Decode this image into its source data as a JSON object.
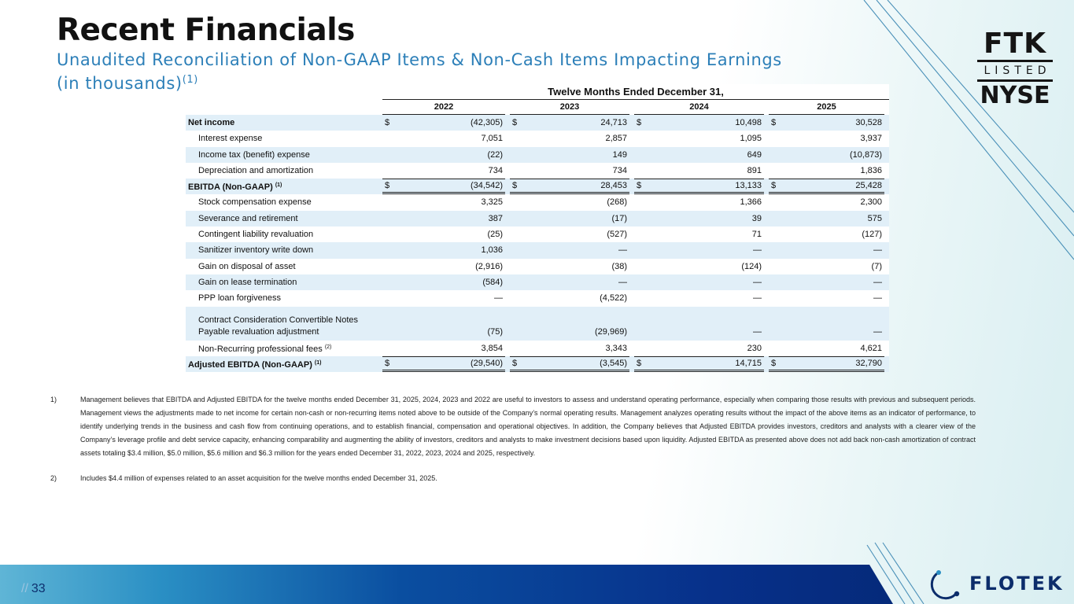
{
  "header": {
    "title": "Recent Financials",
    "subtitle_line1": "Unaudited Reconciliation of Non-GAAP Items & Non-Cash Items Impacting Earnings",
    "subtitle_line2": "(in thousands)",
    "subtitle_sup": "(1)"
  },
  "badge": {
    "ticker": "FTK",
    "listed": "LISTED",
    "exchange": "NYSE"
  },
  "table": {
    "period_header": "Twelve Months Ended December 31,",
    "years": [
      "2022",
      "2023",
      "2024",
      "2025"
    ],
    "rows": [
      {
        "label": "Net income",
        "style": "bold",
        "shade": true,
        "currency": true,
        "values": [
          "(42,305)",
          "24,713",
          "10,498",
          "30,528"
        ]
      },
      {
        "label": "Interest expense",
        "indent": true,
        "shade": false,
        "values": [
          "7,051",
          "2,857",
          "1,095",
          "3,937"
        ]
      },
      {
        "label": "Income tax (benefit) expense",
        "indent": true,
        "shade": true,
        "values": [
          "(22)",
          "149",
          "649",
          "(10,873)"
        ]
      },
      {
        "label": "Depreciation and amortization",
        "indent": true,
        "shade": false,
        "values": [
          "734",
          "734",
          "891",
          "1,836"
        ]
      },
      {
        "label": "EBITDA (Non-GAAP)",
        "sup": "(1)",
        "style": "bold",
        "shade": true,
        "currency": true,
        "total": true,
        "values": [
          "(34,542)",
          "28,453",
          "13,133",
          "25,428"
        ]
      },
      {
        "label": "Stock compensation expense",
        "indent": true,
        "shade": false,
        "values": [
          "3,325",
          "(268)",
          "1,366",
          "2,300"
        ]
      },
      {
        "label": "Severance and retirement",
        "indent": true,
        "shade": true,
        "values": [
          "387",
          "(17)",
          "39",
          "575"
        ]
      },
      {
        "label": "Contingent liability revaluation",
        "indent": true,
        "shade": false,
        "values": [
          "(25)",
          "(527)",
          "71",
          "(127)"
        ]
      },
      {
        "label": "Sanitizer inventory write down",
        "indent": true,
        "shade": true,
        "values": [
          "1,036",
          "—",
          "—",
          "—"
        ]
      },
      {
        "label": "Gain on disposal of asset",
        "indent": true,
        "shade": false,
        "values": [
          "(2,916)",
          "(38)",
          "(124)",
          "(7)"
        ]
      },
      {
        "label": "Gain on lease termination",
        "indent": true,
        "shade": true,
        "values": [
          "(584)",
          "—",
          "—",
          "—"
        ]
      },
      {
        "label": "PPP loan forgiveness",
        "indent": true,
        "shade": false,
        "values": [
          "—",
          "(4,522)",
          "—",
          "—"
        ]
      },
      {
        "label": "Contract Consideration Convertible Notes",
        "label2": "Payable revaluation adjustment",
        "indent": true,
        "shade": true,
        "tall": true,
        "values": [
          "(75)",
          "(29,969)",
          "—",
          "—"
        ]
      },
      {
        "label": "Non-Recurring professional fees",
        "sup": "(2)",
        "indent": true,
        "shade": false,
        "values": [
          "3,854",
          "3,343",
          "230",
          "4,621"
        ]
      },
      {
        "label": "Adjusted EBITDA (Non-GAAP)",
        "sup": "(1)",
        "style": "bold",
        "shade": true,
        "currency": true,
        "total": true,
        "values": [
          "(29,540)",
          "(3,545)",
          "14,715",
          "32,790"
        ]
      }
    ],
    "currency_symbol": "$"
  },
  "notes": [
    {
      "num": "1)",
      "text": "Management believes that EBITDA and Adjusted EBITDA for the twelve months ended December 31, 2025, 2024, 2023 and 2022 are useful to investors to assess and understand operating performance, especially when comparing those results with previous and  subsequent periods.  Management views the adjustments made to net income for certain non-cash or non-recurring items noted above to be outside of the Company’s normal operating results.  Management analyzes operating results without the impact of the above items as an indicator of performance, to identify underlying trends in the business and cash flow from continuing operations, and to establish financial, compensation and operational objectives. In addition, the Company believes that Adjusted EBITDA provides investors, creditors and analysts with a clearer view of the Company’s leverage profile and debt service capacity, enhancing comparability and augmenting the ability of investors, creditors and analysts to make investment decisions based upon liquidity. Adjusted EBITDA as presented above does not add back non-cash amortization of contract assets totaling $3.4 million, $5.0 million, $5.6 million and $6.3 million for the years ended December 31, 2022, 2023, 2024 and 2025, respectively."
    },
    {
      "num": "2)",
      "text": "Includes $4.4 million of expenses related to an asset acquisition for the twelve months ended December 31, 2025."
    }
  ],
  "footer": {
    "slashes": "//",
    "page_number": "33",
    "logo_text": "FLOTEK"
  },
  "colors": {
    "accent_blue": "#2c7fb8",
    "table_shade": "#e1eff8",
    "footer_dark": "#07308a",
    "logo_navy": "#0c2d6b"
  }
}
